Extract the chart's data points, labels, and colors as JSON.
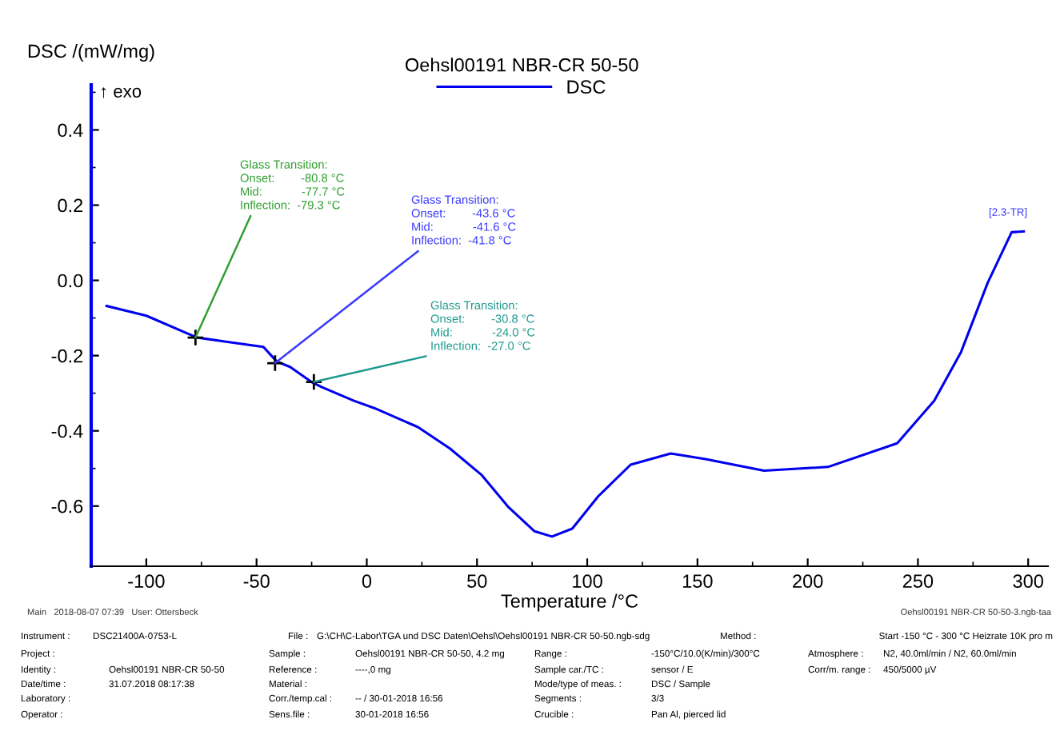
{
  "chart_data": {
    "type": "line",
    "title": "Oehsl00191 NBR-CR 50-50",
    "xlabel": "Temperature /°C",
    "ylabel": "DSC /(mW/mg)",
    "x": [
      -118,
      -100,
      -77,
      -63.8,
      -46.9,
      -40.8,
      -34.8,
      -25.1,
      -20.3,
      -5.8,
      3.6,
      23.2,
      37.7,
      52.2,
      64.3,
      76.1,
      84,
      93.2,
      105,
      119.7,
      137.9,
      153.6,
      180.2,
      209.2,
      240.6,
      257.4,
      269.6,
      281.6,
      292.5,
      298
    ],
    "series": [
      {
        "name": "DSC",
        "color": "#0000ee",
        "values": [
          -0.068,
          -0.094,
          -0.152,
          -0.163,
          -0.177,
          -0.216,
          -0.23,
          -0.27,
          -0.284,
          -0.32,
          -0.34,
          -0.39,
          -0.447,
          -0.518,
          -0.603,
          -0.667,
          -0.681,
          -0.66,
          -0.574,
          -0.49,
          -0.46,
          -0.475,
          -0.506,
          -0.496,
          -0.433,
          -0.32,
          -0.19,
          -0.007,
          0.128,
          0.13
        ]
      }
    ],
    "xlim": [
      -124,
      309
    ],
    "ylim": [
      -0.76,
      0.52
    ],
    "xticks": [
      -100,
      -50,
      0,
      50,
      100,
      150,
      200,
      250,
      300
    ],
    "yticks": [
      -0.6,
      -0.4,
      -0.2,
      {
        "value": 0,
        "label": "0.0"
      },
      0.2,
      0.4
    ],
    "grid": false,
    "legend": "top",
    "marker": "none",
    "line_style": "solid",
    "annotations": [
      "↑ exo",
      {
        "text": "Glass Transition:\nOnset:        -80.8 °C\nMid:            -77.7 °C\nInflection:  -79.3 °C",
        "x": -77.7,
        "y": -0.152
      },
      {
        "text": "Glass Transition:\nOnset:        -43.6 °C\nMid:            -41.6 °C\nInflection:  -41.8 °C",
        "x": -41.6,
        "y": -0.22
      },
      {
        "text": "Glass Transition:\nOnset:        -30.8 °C\nMid:            -24.0 °C\nInflection:  -27.0 °C",
        "x": -24.0,
        "y": -0.27
      },
      {
        "text": "[2.3-TR]",
        "x": 292.5,
        "y": 0.128
      },
      "Main   2018-08-07 07:39   User: Ottersbeck",
      "Oehsl00191 NBR-CR 50-50-3.ngb-taa",
      "Instrument :",
      "DSC21400A-0753-L",
      "File :",
      "G:\\CH\\C-Labor\\TGA und DSC Daten\\Oehsl\\Oehsl00191 NBR-CR 50-50.ngb-sdg",
      "Method :",
      "Start -150 °C - 300 °C Heizrate 10K pro m",
      "Project :",
      "Identity :",
      "Date/time :",
      "Laboratory :",
      "Operator :",
      "Oehsl00191 NBR-CR 50-50",
      "31.07.2018 08:17:38",
      "Sample :",
      "Reference :",
      "Material :",
      "Corr./temp.cal :",
      "Sens.file :",
      "Oehsl00191 NBR-CR 50-50, 4.2 mg",
      "----,0 mg",
      "-- / 30-01-2018 16:56",
      "30-01-2018 16:56",
      "Range :",
      "Sample car./TC :",
      "Mode/type of meas. :",
      "Segments :",
      "Crucible :",
      "-150°C/10.0(K/min)/300°C",
      "sensor / E",
      "DSC / Sample",
      "3/3",
      "Pan Al, pierced lid",
      "Atmosphere :",
      "Corr/m. range :",
      "N2, 40.0ml/min / N2, 60.0ml/min",
      "450/5000 µV"
    ]
  }
}
